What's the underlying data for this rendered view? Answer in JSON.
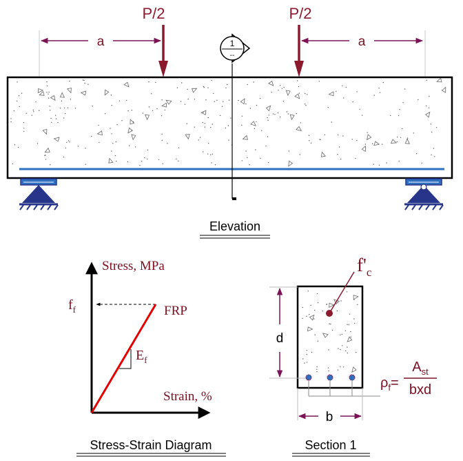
{
  "elevation": {
    "load_label": "P/2",
    "span_label": "a",
    "section_marker_number": "1",
    "section_marker_sub": "--",
    "title": "Elevation"
  },
  "stress_strain": {
    "y_axis_label": "Stress, MPa",
    "x_axis_label": "Strain, %",
    "ff_main": "f",
    "ff_sub": "f",
    "material_label": "FRP",
    "modulus_main": "E",
    "modulus_sub": "f",
    "title": "Stress-Strain Diagram"
  },
  "section": {
    "fc_main": "f'",
    "fc_sub": "c",
    "depth_label": "d",
    "width_label": "b",
    "rho_main": "ρ",
    "rho_sub": "f",
    "rho_equals": "=",
    "numerator_main": "A",
    "numerator_sub": "st",
    "denominator": "bxd",
    "title": "Section 1"
  },
  "colors": {
    "load_arrow": "#8b1a2e",
    "dimension": "#7a1456",
    "reinforcement": "#2e6fc0",
    "support": "#26358a",
    "frp_line": "#e00000",
    "text_dark_red": "#7a1020"
  }
}
